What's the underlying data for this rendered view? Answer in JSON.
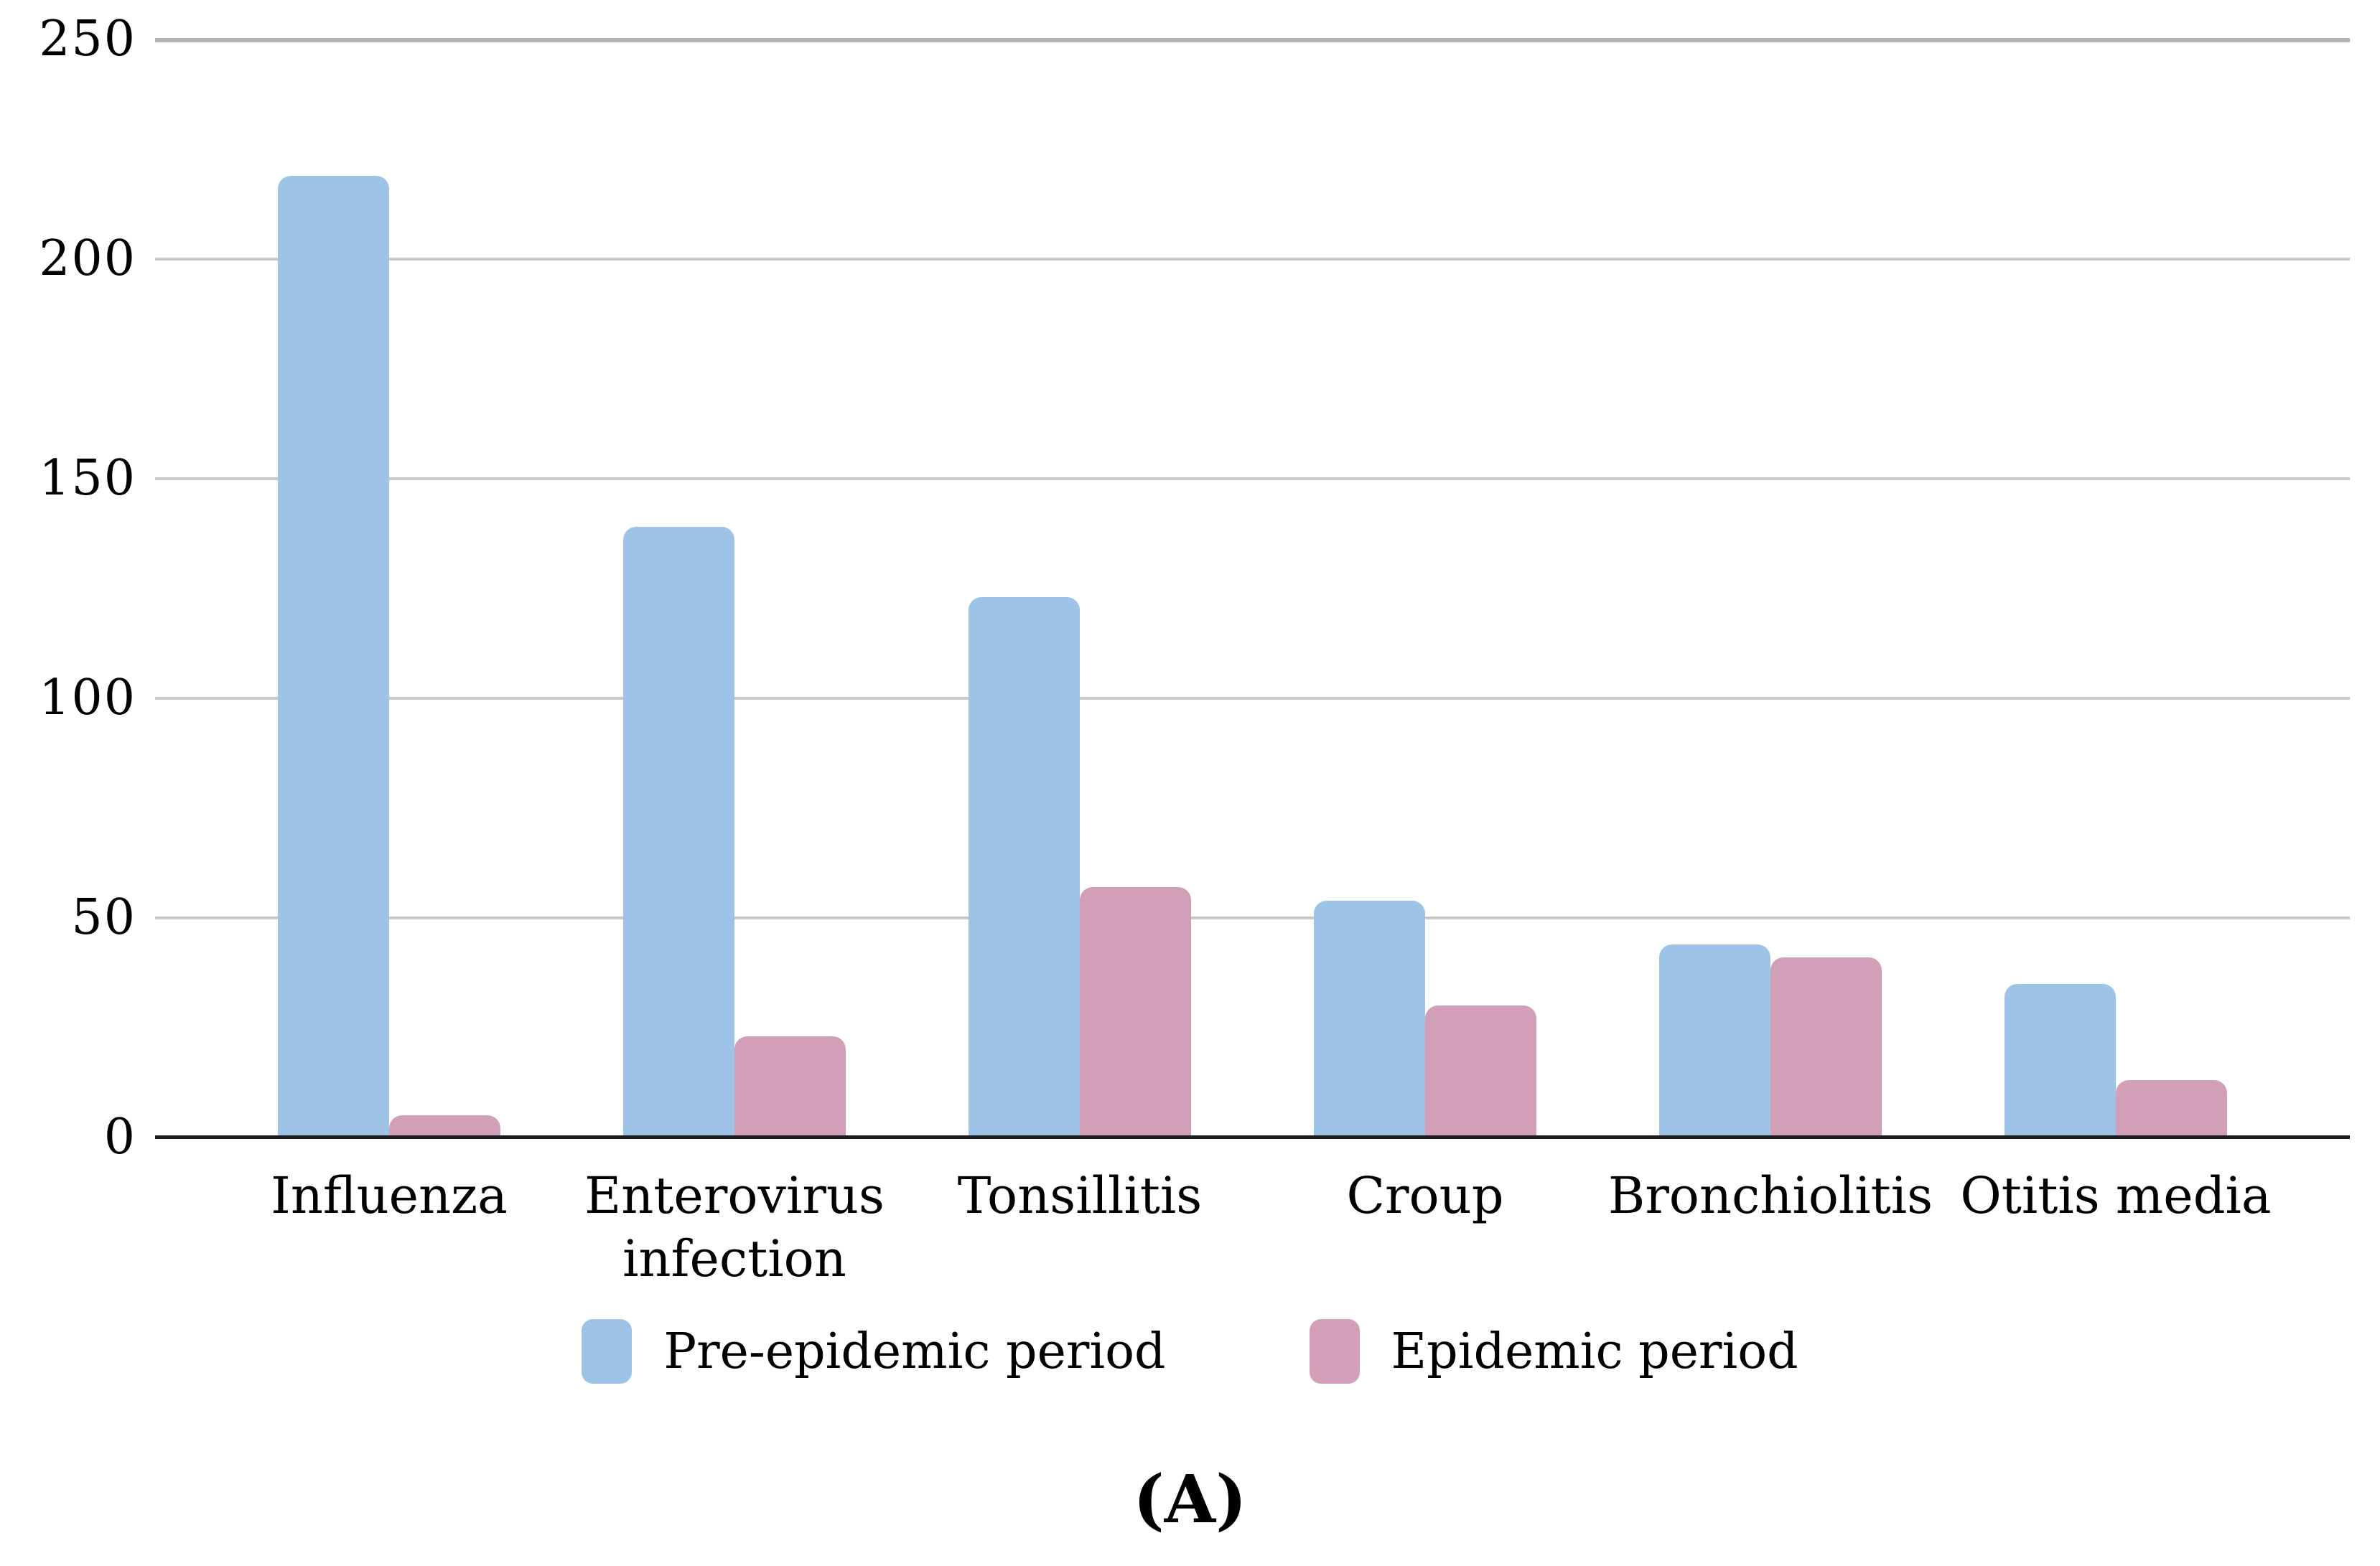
{
  "figure": {
    "caption": "(A)"
  },
  "chart_data": {
    "type": "bar",
    "categories": [
      "Influenza",
      "Enterovirus infection",
      "Tonsillitis",
      "Croup",
      "Bronchiolitis",
      "Otitis media"
    ],
    "series": [
      {
        "name": "Pre-epidemic period",
        "color": "#9DC3E6",
        "values": [
          219,
          139,
          123,
          54,
          44,
          35
        ]
      },
      {
        "name": "Epidemic period",
        "color": "#D1A0B8",
        "values": [
          5,
          23,
          57,
          30,
          41,
          13
        ]
      }
    ],
    "title": "",
    "xlabel": "",
    "ylabel": "",
    "ylim": [
      0,
      250
    ],
    "yticks": [
      0,
      50,
      100,
      150,
      200,
      250
    ],
    "grid": true,
    "legend_position": "bottom",
    "colors": {
      "gridline": "#c9c9c9",
      "top_gridline": "#b3b3b3",
      "axis": "#1c1c1c",
      "text": "#000000",
      "background": "#ffffff"
    }
  }
}
